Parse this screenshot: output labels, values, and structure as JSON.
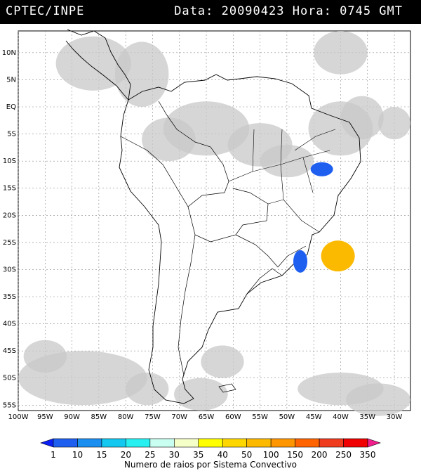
{
  "header": {
    "source": "CPTEC/INPE",
    "datetime": "Data: 20090423 Hora: 0745 GMT"
  },
  "map": {
    "lat_labels": [
      "10N",
      "5N",
      "EQ",
      "5S",
      "10S",
      "15S",
      "20S",
      "25S",
      "30S",
      "35S",
      "40S",
      "45S",
      "50S",
      "55S"
    ],
    "lat_values": [
      10,
      5,
      0,
      -5,
      -10,
      -15,
      -20,
      -25,
      -30,
      -35,
      -40,
      -45,
      -50,
      -55
    ],
    "lon_labels": [
      "100W",
      "95W",
      "90W",
      "85W",
      "80W",
      "75W",
      "70W",
      "65W",
      "60W",
      "55W",
      "50W",
      "45W",
      "40W",
      "35W",
      "30W"
    ],
    "lon_values": [
      -100,
      -95,
      -90,
      -85,
      -80,
      -75,
      -70,
      -65,
      -60,
      -55,
      -50,
      -45,
      -40,
      -35,
      -30
    ],
    "extent": {
      "lon_min": -100,
      "lon_max": -27,
      "lat_min": -56,
      "lat_max": 14
    },
    "cloud_color": "#c8c8c8",
    "convective_systems": [
      {
        "name": "system-bahia",
        "lon": -43.5,
        "lat": -11.5,
        "color": "#1f5ff0",
        "rays_class": "1-10"
      },
      {
        "name": "system-rs",
        "lon": -47.5,
        "lat": -28.5,
        "color": "#1f5ff0",
        "rays_class": "1-10"
      },
      {
        "name": "system-atlantic",
        "lon": -40.5,
        "lat": -27.5,
        "color": "#fbb900",
        "rays_class": "50-100"
      }
    ]
  },
  "colorbar": {
    "labels": [
      "1",
      "10",
      "15",
      "20",
      "25",
      "30",
      "35",
      "40",
      "50",
      "100",
      "150",
      "200",
      "250",
      "350"
    ],
    "colors": [
      "#0a1ff5",
      "#1f5ff0",
      "#1a8ff0",
      "#14c8f0",
      "#28f0f0",
      "#c8fff0",
      "#f5ffc8",
      "#ffff00",
      "#ffd700",
      "#fbb900",
      "#ff9600",
      "#ff6400",
      "#f03c1e",
      "#f00000",
      "#f01e8c"
    ],
    "title": "Numero de raios por Sistema Convectivo"
  }
}
